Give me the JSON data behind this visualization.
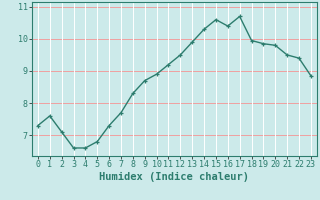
{
  "x": [
    0,
    1,
    2,
    3,
    4,
    5,
    6,
    7,
    8,
    9,
    10,
    11,
    12,
    13,
    14,
    15,
    16,
    17,
    18,
    19,
    20,
    21,
    22,
    23
  ],
  "y": [
    7.3,
    7.6,
    7.1,
    6.6,
    6.6,
    6.8,
    7.3,
    7.7,
    8.3,
    8.7,
    8.9,
    9.2,
    9.5,
    9.9,
    10.3,
    10.6,
    10.4,
    10.7,
    9.95,
    9.85,
    9.8,
    9.5,
    9.4,
    8.85
  ],
  "line_color": "#2d7d6e",
  "marker": "+",
  "marker_size": 3,
  "bg_color": "#cceaea",
  "grid_color_white": "#ffffff",
  "grid_color_red": "#f0a0a0",
  "xlabel": "Humidex (Indice chaleur)",
  "xlim": [
    -0.5,
    23.5
  ],
  "ylim": [
    6.35,
    11.15
  ],
  "yticks": [
    7,
    8,
    9,
    10,
    11
  ],
  "xticks": [
    0,
    1,
    2,
    3,
    4,
    5,
    6,
    7,
    8,
    9,
    10,
    11,
    12,
    13,
    14,
    15,
    16,
    17,
    18,
    19,
    20,
    21,
    22,
    23
  ],
  "xlabel_fontsize": 7.5,
  "tick_fontsize": 6,
  "line_width": 1.0,
  "spine_color": "#2d7d6e"
}
